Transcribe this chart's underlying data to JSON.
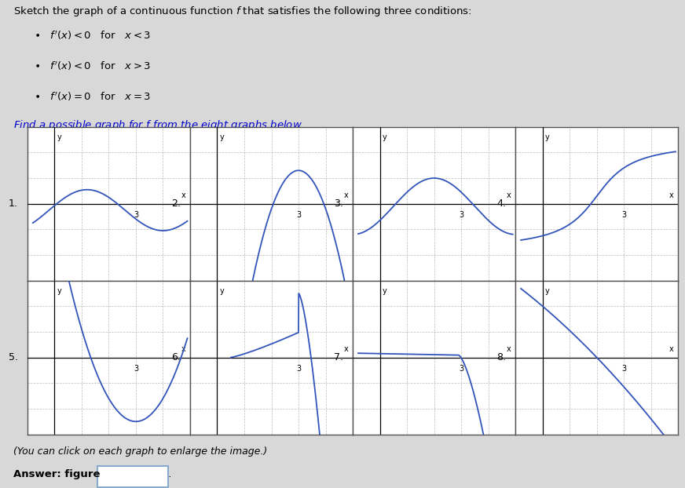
{
  "bg_color": "#d8d8d8",
  "grid_bg": "#ffffff",
  "curve_color": "#3355bb",
  "axis_color": "#000000",
  "grid_color": "#aaaaaa",
  "graph_labels": [
    "1.",
    "2.",
    "3.",
    "4.",
    "5.",
    "6.",
    "7.",
    "8."
  ]
}
